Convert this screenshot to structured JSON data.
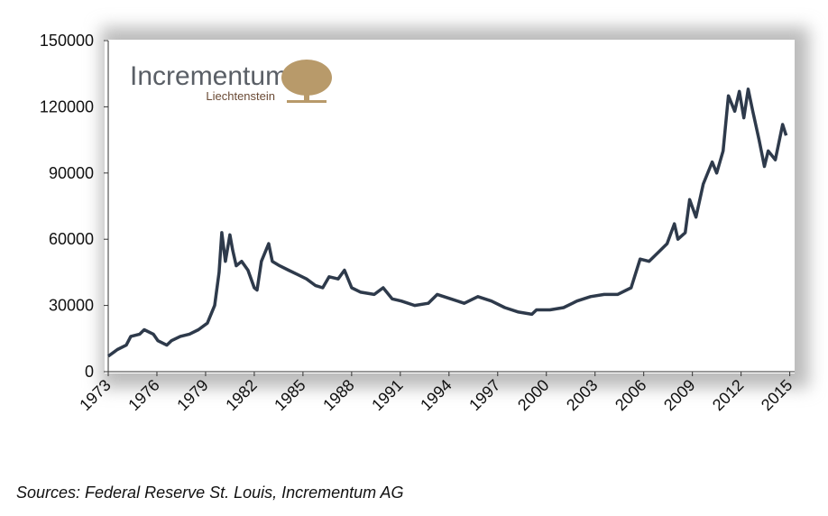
{
  "chart_data": {
    "type": "line",
    "logo": {
      "name": "Incrementum",
      "place": "Liechtenstein"
    },
    "source": "Sources: Federal Reserve St. Louis, Incrementum AG",
    "color": "#2e3a4b",
    "x": [
      1973.0,
      1973.56,
      1974.11,
      1974.39,
      1974.94,
      1975.22,
      1975.78,
      1976.06,
      1976.61,
      1976.89,
      1977.44,
      1978.0,
      1978.56,
      1979.11,
      1979.56,
      1979.83,
      1980.0,
      1980.22,
      1980.5,
      1980.67,
      1980.89,
      1981.22,
      1981.61,
      1982.0,
      1982.17,
      1982.44,
      1982.89,
      1983.11,
      1983.56,
      1984.11,
      1984.67,
      1985.22,
      1985.78,
      1986.22,
      1986.61,
      1987.17,
      1987.56,
      1988.0,
      1988.56,
      1989.39,
      1989.94,
      1990.5,
      1991.06,
      1991.89,
      1992.72,
      1993.28,
      1994.11,
      1994.94,
      1995.78,
      1996.61,
      1997.44,
      1998.28,
      1999.11,
      1999.39,
      2000.22,
      2001.06,
      2001.89,
      2002.72,
      2003.56,
      2004.39,
      2005.22,
      2005.78,
      2006.33,
      2006.89,
      2007.44,
      2007.89,
      2008.11,
      2008.56,
      2008.83,
      2009.22,
      2009.67,
      2010.22,
      2010.5,
      2010.89,
      2011.22,
      2011.61,
      2011.89,
      2012.17,
      2012.44,
      2012.72,
      2013.11,
      2013.44,
      2013.67,
      2014.11,
      2014.56,
      2014.78
    ],
    "values": [
      7000,
      10000,
      12000,
      16000,
      17000,
      19000,
      17000,
      14000,
      12000,
      14000,
      16000,
      17000,
      19000,
      22000,
      30000,
      45000,
      63000,
      50000,
      62000,
      55000,
      48000,
      50000,
      46000,
      38000,
      37000,
      50000,
      58000,
      50000,
      48000,
      46000,
      44000,
      42000,
      39000,
      38000,
      43000,
      42000,
      46000,
      38000,
      36000,
      35000,
      38000,
      33000,
      32000,
      30000,
      31000,
      35000,
      33000,
      31000,
      34000,
      32000,
      29000,
      27000,
      26000,
      28000,
      28000,
      29000,
      32000,
      34000,
      35000,
      35000,
      38000,
      51000,
      50000,
      54000,
      58000,
      67000,
      60000,
      63000,
      78000,
      70000,
      85000,
      95000,
      90000,
      100000,
      125000,
      118000,
      127000,
      115000,
      128000,
      118000,
      105000,
      93000,
      100000,
      96000,
      112000,
      107000
    ],
    "xlim": [
      1973,
      2015.3
    ],
    "xticks": [
      1973,
      1976,
      1979,
      1982,
      1985,
      1988,
      1991,
      1994,
      1997,
      2000,
      2003,
      2006,
      2009,
      2012,
      2015
    ],
    "ylim": [
      0,
      150000
    ],
    "yticks": [
      0,
      30000,
      60000,
      90000,
      120000,
      150000
    ],
    "grid": false
  }
}
